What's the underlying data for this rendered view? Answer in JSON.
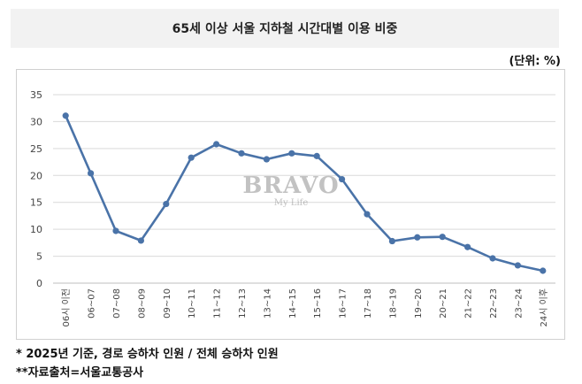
{
  "title": "65세 이상 서울 지하철 시간대별 이용 비중",
  "unit_label": "(단위: %)",
  "notes": [
    "* 2025년 기준, 경로 승하차 인원 / 전체 승하차 인원",
    "**자료출처=서울교통공사"
  ],
  "watermark": {
    "main": "BRAVO",
    "sub": "My Life"
  },
  "colors": {
    "line": "#4a73a8",
    "grid": "#d9d9d9",
    "axis": "#bfbfbf",
    "title_bg": "#f2f2f2"
  },
  "chart_data": {
    "type": "line",
    "categories": [
      "06시 이전",
      "06~07",
      "07~08",
      "08~09",
      "09~10",
      "10~11",
      "11~12",
      "12~13",
      "13~14",
      "14~15",
      "15~16",
      "16~17",
      "17~18",
      "18~19",
      "19~20",
      "20~21",
      "21~22",
      "22~23",
      "23~24",
      "24시 이후"
    ],
    "values": [
      31.1,
      20.4,
      9.7,
      7.9,
      14.7,
      23.3,
      25.8,
      24.1,
      23.0,
      24.1,
      23.6,
      19.3,
      12.8,
      7.8,
      8.5,
      8.6,
      6.7,
      4.6,
      3.3,
      2.3
    ],
    "yticks": [
      0,
      5,
      10,
      15,
      20,
      25,
      30,
      35
    ],
    "ylim": [
      0,
      35
    ],
    "grid": true
  }
}
